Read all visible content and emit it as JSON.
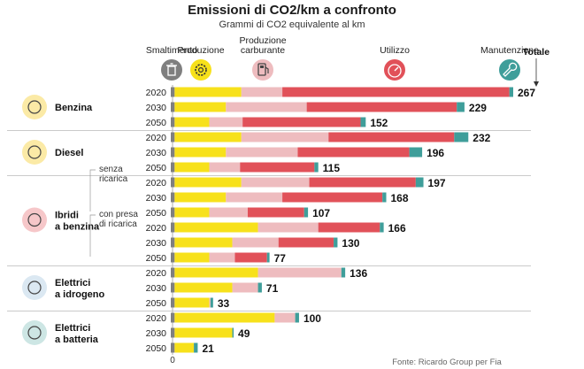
{
  "title": "Emissioni di CO2/km a confronto",
  "subtitle": "Grammi di CO2 equivalente al km",
  "source": "Fonte: Ricardo Group per Fia",
  "colors": {
    "Smaltimento": "#7f7f7f",
    "Produzione": "#f7e11b",
    "Produzione carburante": "#eebcbf",
    "Utilizzo": "#e15159",
    "Manutenzione": "#3f9e9a"
  },
  "headers": [
    {
      "key": "Smaltimento",
      "lines": [
        "Smaltimento"
      ],
      "icon": "trash-icon"
    },
    {
      "key": "Produzione",
      "lines": [
        "Produzione"
      ],
      "icon": "gear-icon"
    },
    {
      "key": "Produzione carburante",
      "lines": [
        "Produzione",
        "carburante"
      ],
      "icon": "fuel-pump-icon"
    },
    {
      "key": "Utilizzo",
      "lines": [
        "Utilizzo"
      ],
      "icon": "gauge-icon"
    },
    {
      "key": "Manutenzione",
      "lines": [
        "Manutenzione"
      ],
      "icon": "wrench-icon"
    }
  ],
  "totale_label": "Totale",
  "chart_data": {
    "type": "bar",
    "orientation": "horizontal",
    "stacked": true,
    "title": "Emissioni di CO2/km a confronto",
    "subtitle": "Grammi di CO2 equivalente al km",
    "xlim": [
      0,
      270
    ],
    "x_ticks": [
      "0"
    ],
    "components": [
      "Smaltimento",
      "Produzione",
      "Produzione carburante",
      "Utilizzo",
      "Manutenzione"
    ],
    "groups": [
      {
        "name": "Benzina",
        "icon": "gasoline-pump-icon",
        "icon_bg": "#fbeaa6",
        "rows": [
          {
            "year": "2020",
            "values": [
              3,
              52,
              32,
              177,
              3
            ],
            "total": "267"
          },
          {
            "year": "2030",
            "values": [
              3,
              40,
              63,
              117,
              6
            ],
            "total": "229"
          },
          {
            "year": "2050",
            "values": [
              3,
              27,
              26,
              92,
              4
            ],
            "total": "152"
          }
        ]
      },
      {
        "name": "Diesel",
        "icon": "diesel-pump-icon",
        "icon_bg": "#fbeaa6",
        "rows": [
          {
            "year": "2020",
            "values": [
              3,
              52,
              68,
              98,
              11
            ],
            "total": "232"
          },
          {
            "year": "2030",
            "values": [
              3,
              40,
              56,
              87,
              10
            ],
            "total": "196"
          },
          {
            "year": "2050",
            "values": [
              3,
              27,
              24,
              58,
              3
            ],
            "total": "115"
          }
        ]
      },
      {
        "name": "Ibridi",
        "name2": "a benzina",
        "icon": "hybrid-car-icon",
        "icon_bg": "#f6c7c9",
        "rows": [
          {
            "year": "2020",
            "subtitle": "senza",
            "subtitle2": "ricarica",
            "values": [
              3,
              52,
              53,
              83,
              6
            ],
            "total": "197"
          },
          {
            "year": "2030",
            "values": [
              3,
              40,
              44,
              78,
              3
            ],
            "total": "168"
          },
          {
            "year": "2050",
            "values": [
              3,
              27,
              30,
              44,
              3
            ],
            "total": "107"
          },
          {
            "year": "2020",
            "subtitle": "con presa",
            "subtitle2": "di ricarica",
            "values": [
              3,
              65,
              47,
              48,
              3
            ],
            "total": "166"
          },
          {
            "year": "2030",
            "values": [
              3,
              45,
              36,
              43,
              3
            ],
            "total": "130"
          },
          {
            "year": "2050",
            "values": [
              3,
              27,
              20,
              25,
              2
            ],
            "total": "77"
          }
        ]
      },
      {
        "name": "Elettrici",
        "name2": "a idrogeno",
        "icon": "hydrogen-drop-icon",
        "icon_bg": "#dbe8f2",
        "rows": [
          {
            "year": "2020",
            "values": [
              3,
              65,
              65,
              0,
              3
            ],
            "total": "136"
          },
          {
            "year": "2030",
            "values": [
              3,
              45,
              20,
              0,
              3
            ],
            "total": "71"
          },
          {
            "year": "2050",
            "values": [
              3,
              27,
              1,
              0,
              2
            ],
            "total": "33"
          }
        ]
      },
      {
        "name": "Elettrici",
        "name2": "a batteria",
        "icon": "battery-charge-icon",
        "icon_bg": "#cde6e4",
        "rows": [
          {
            "year": "2020",
            "values": [
              3,
              78,
              16,
              0,
              3
            ],
            "total": "100"
          },
          {
            "year": "2030",
            "values": [
              3,
              45,
              0,
              0,
              1
            ],
            "total": "49"
          },
          {
            "year": "2050",
            "values": [
              3,
              15,
              0,
              0,
              3
            ],
            "total": "21"
          }
        ]
      }
    ]
  }
}
